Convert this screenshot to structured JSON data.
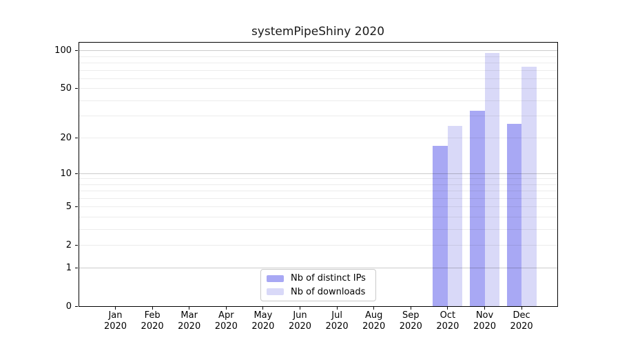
{
  "chart_data": {
    "type": "bar",
    "title": "systemPipeShiny 2020",
    "x_axis": {
      "months": [
        "Jan",
        "Feb",
        "Mar",
        "Apr",
        "May",
        "Jun",
        "Jul",
        "Aug",
        "Sep",
        "Oct",
        "Nov",
        "Dec"
      ],
      "year": "2020"
    },
    "y_axis": {
      "scale": "log1p",
      "max": 118,
      "tick_labels": [
        "0",
        "1",
        "2",
        "5",
        "10",
        "20",
        "50",
        "100"
      ],
      "tick_values": [
        0,
        1,
        2,
        5,
        10,
        20,
        50,
        100
      ],
      "major_gridlines": [
        1,
        10,
        100
      ],
      "minor_gridlines": [
        2,
        3,
        4,
        5,
        6,
        7,
        8,
        9,
        20,
        30,
        40,
        50,
        60,
        70,
        80,
        90
      ],
      "grid": true
    },
    "series": [
      {
        "name": "Nb of distinct IPs",
        "color": "#a8a8f4",
        "values": [
          0,
          0,
          0,
          0,
          0,
          0,
          0,
          0,
          0,
          17,
          33,
          26
        ]
      },
      {
        "name": "Nb of downloads",
        "color": "#d9d9f8",
        "values": [
          0,
          0,
          0,
          0,
          0,
          0,
          0,
          0,
          0,
          25,
          96,
          75
        ]
      }
    ],
    "legend": {
      "position": "lower center"
    },
    "colors": {
      "background": "#ffffff",
      "major_grid": "#cbcbcb",
      "minor_grid": "#ececec",
      "spine": "#000000",
      "text": "#000000"
    }
  }
}
